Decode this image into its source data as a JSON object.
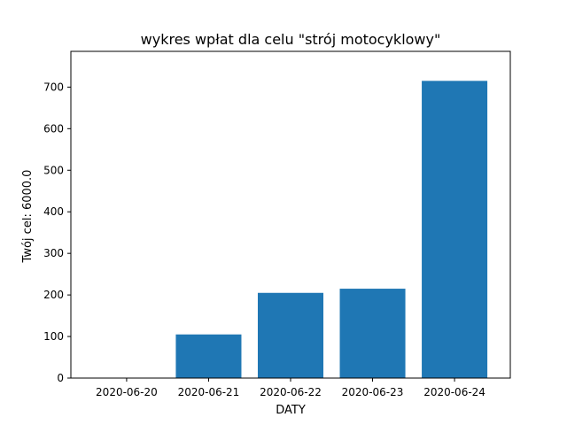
{
  "chart_data": {
    "type": "bar",
    "title": "wykres wpłat dla celu \"strój motocyklowy\"",
    "xlabel": "DATY",
    "ylabel": "Twój cel: 6000.0",
    "categories": [
      "2020-06-20",
      "2020-06-21",
      "2020-06-22",
      "2020-06-23",
      "2020-06-24"
    ],
    "values": [
      0,
      105,
      205,
      215,
      715
    ],
    "ylim": [
      0,
      786
    ],
    "yticks": [
      0,
      100,
      200,
      300,
      400,
      500,
      600,
      700
    ],
    "bar_color": "#1f77b4",
    "grid": false
  }
}
